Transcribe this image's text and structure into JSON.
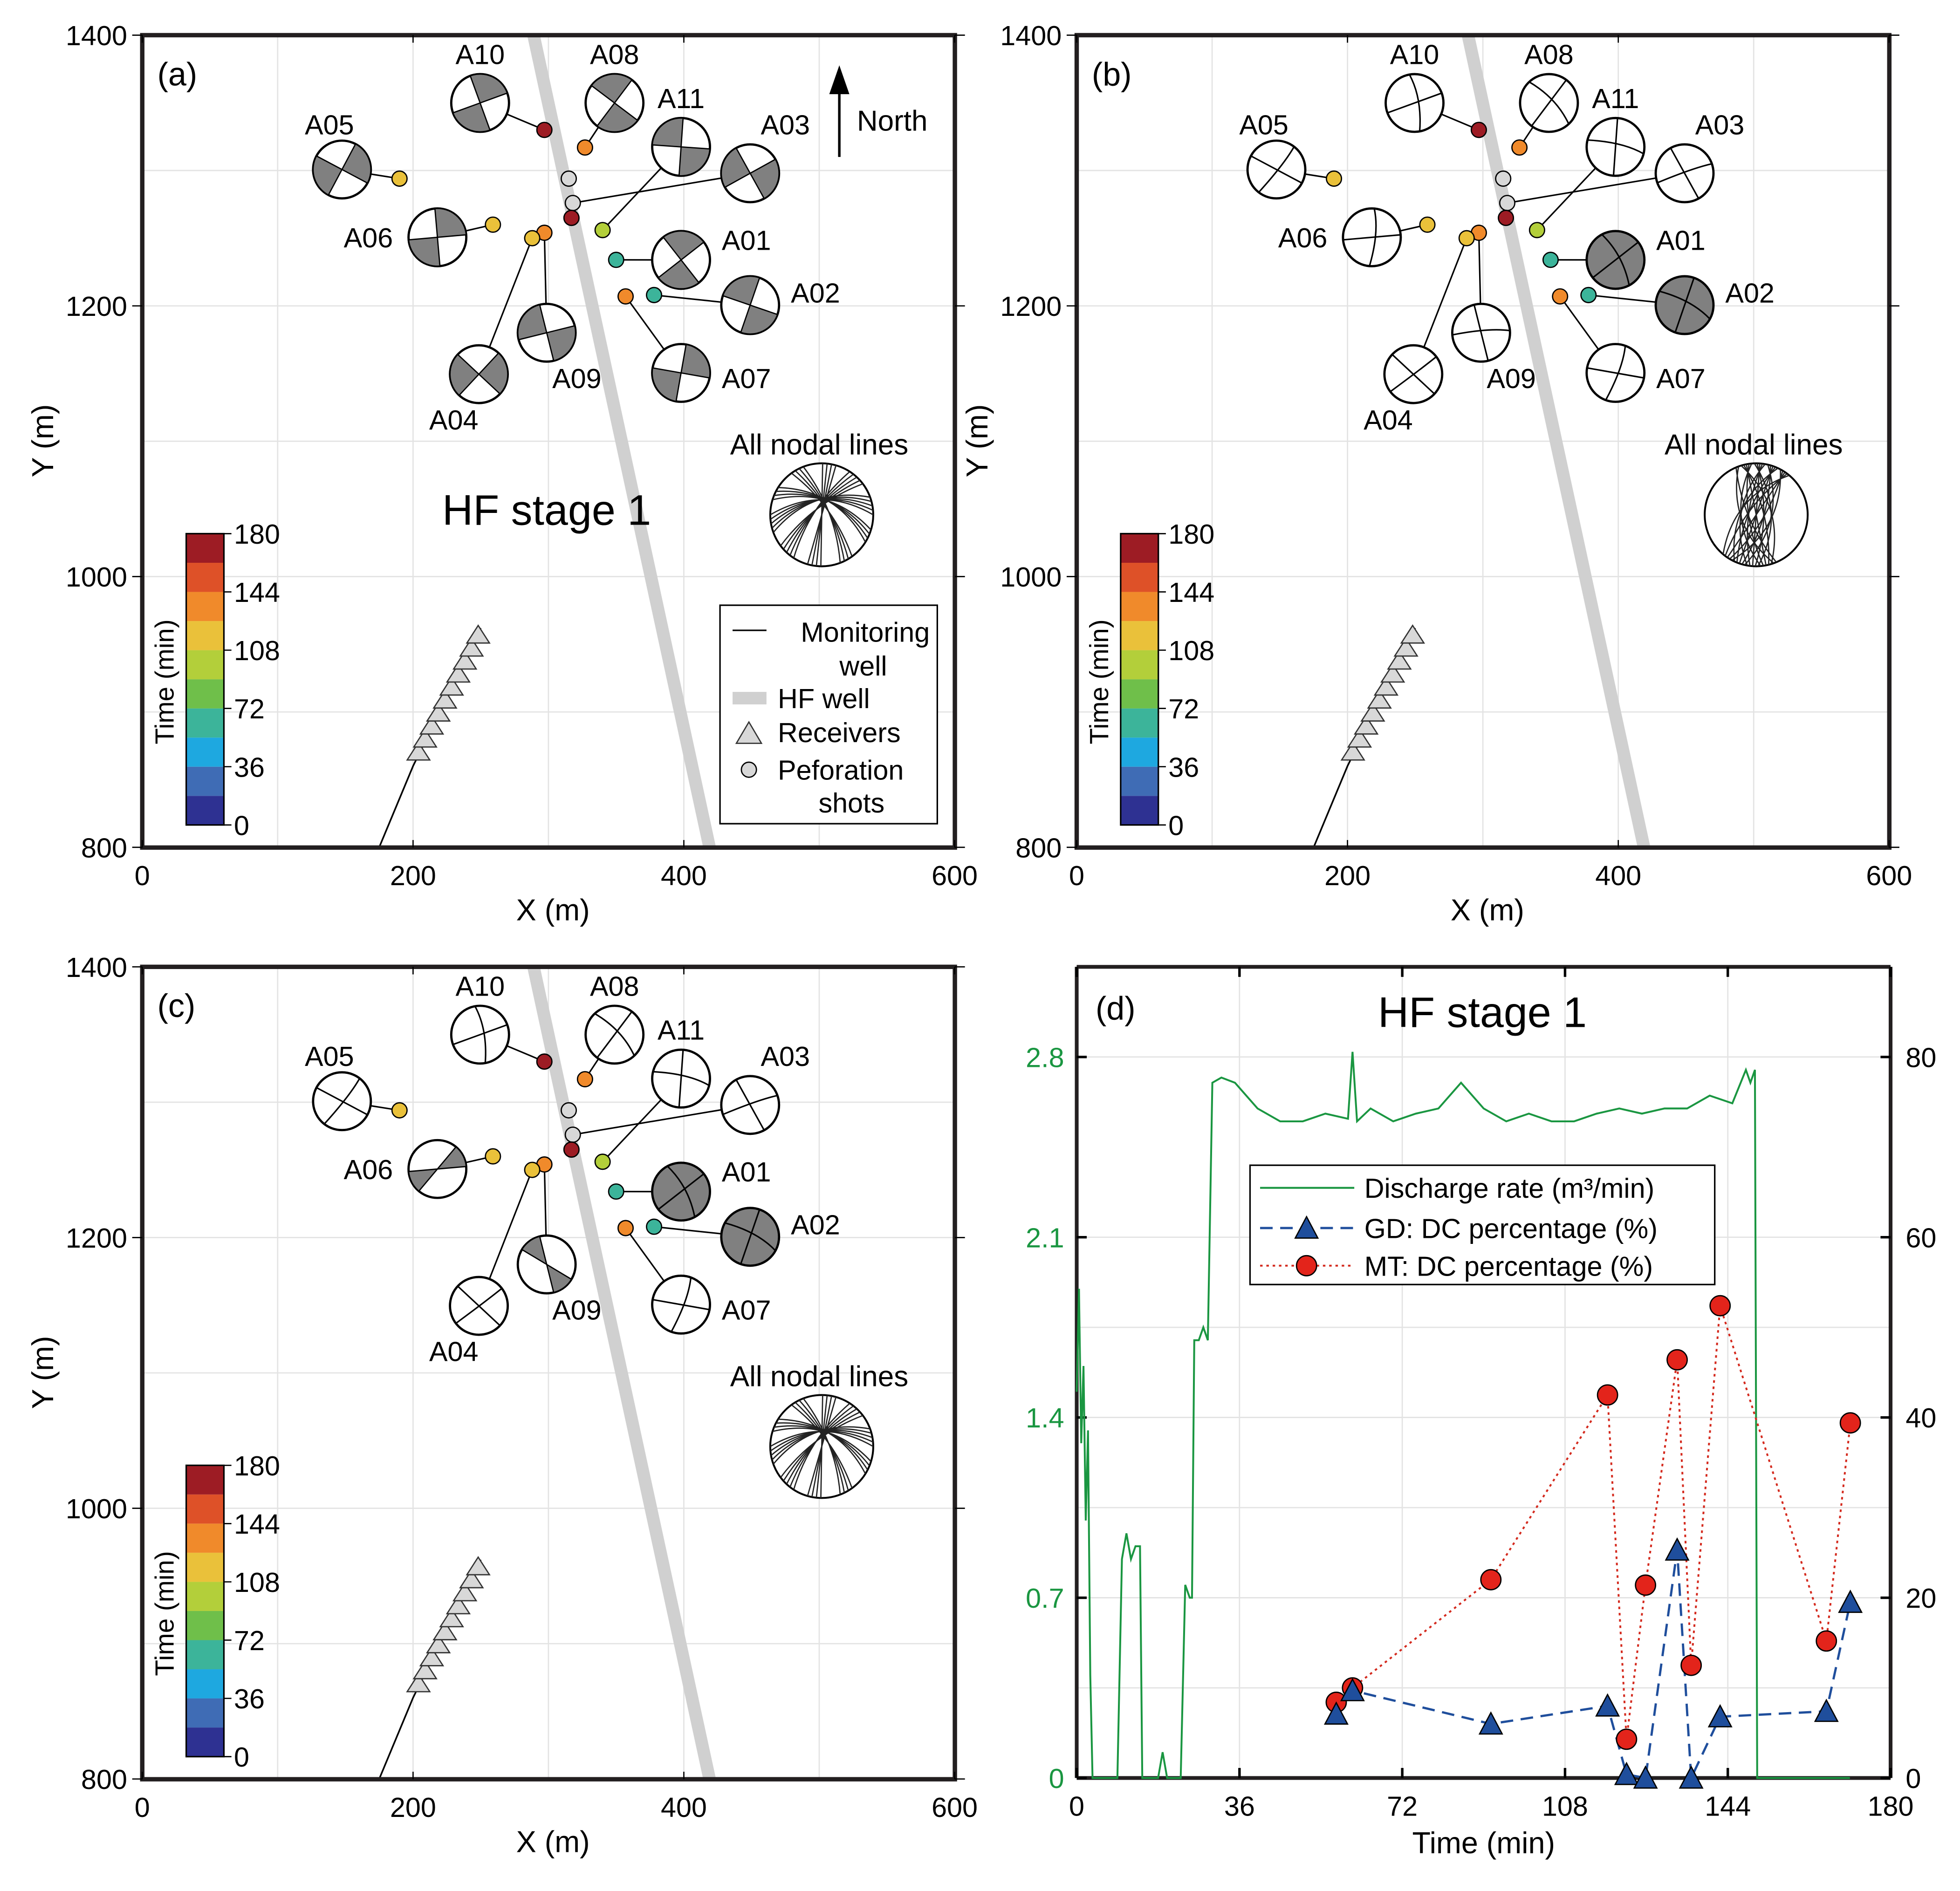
{
  "panels": [
    {
      "label": "(a)",
      "method": "dc",
      "title": "HF stage 1",
      "nodal_label": "All nodal lines",
      "north": "North",
      "legend": {
        "monitoring": "Monitoring",
        "monitoring2": "well",
        "hf": "HF well",
        "receivers": "Receivers",
        "perf": "Peforation",
        "perf2": "shots"
      }
    },
    {
      "label": "(b)",
      "method": "gd",
      "nodal_label": "All nodal lines"
    },
    {
      "label": "(c)",
      "method": "mt",
      "nodal_label": "All nodal lines"
    }
  ],
  "map_axes": {
    "xlabel": "X (m)",
    "ylabel": "Y (m)",
    "xticks": [
      "0",
      "200",
      "400",
      "600"
    ],
    "yticks": [
      "800",
      "1000",
      "1200",
      "1400"
    ],
    "xlim": [
      0,
      600
    ],
    "ylim": [
      800,
      1400
    ]
  },
  "colorbar": {
    "label": "Time (min)",
    "ticks": [
      "0",
      "36",
      "72",
      "108",
      "144",
      "180"
    ],
    "colors": [
      "#2e3192",
      "#3f6cb5",
      "#1ea8e0",
      "#3cb49a",
      "#6fbf4a",
      "#b3cf3a",
      "#eac13a",
      "#f08a2b",
      "#de5128",
      "#9d1c24"
    ]
  },
  "events": [
    {
      "id": "A10",
      "x": 297,
      "y": 1330,
      "time": 172,
      "ball": [
        382,
        82
      ],
      "fill": {
        "a": "dc",
        "b": "white",
        "c": "white"
      }
    },
    {
      "id": "A08",
      "x": 327,
      "y": 1317,
      "time": 130,
      "ball": [
        489,
        82
      ],
      "fill": {
        "a": "dc",
        "b": "white",
        "c": "white"
      }
    },
    {
      "id": "A11",
      "x": 340,
      "y": 1256,
      "time": 96,
      "ball": [
        542,
        117
      ],
      "fill": {
        "a": "dc",
        "b": "white",
        "c": "white"
      }
    },
    {
      "id": "A03",
      "x": 318,
      "y": 1276,
      "time": 0,
      "ball": [
        597,
        138
      ],
      "fill": {
        "a": "dc",
        "b": "white",
        "c": "white"
      }
    },
    {
      "id": "A05",
      "x": 190,
      "y": 1294,
      "time": 110,
      "ball": [
        272,
        135
      ],
      "fill": {
        "a": "dc",
        "b": "white",
        "c": "white"
      }
    },
    {
      "id": "A06",
      "x": 259,
      "y": 1260,
      "time": 112,
      "ball": [
        348,
        189
      ],
      "fill": {
        "a": "dc",
        "b": "white",
        "c": "partial"
      }
    },
    {
      "id": "A01",
      "x": 350,
      "y": 1234,
      "time": 70,
      "ball": [
        542,
        207
      ],
      "fill": {
        "a": "dc",
        "b": "gray",
        "c": "gray"
      }
    },
    {
      "id": "A02",
      "x": 378,
      "y": 1208,
      "time": 65,
      "ball": [
        597,
        243
      ],
      "fill": {
        "a": "dc",
        "b": "gray",
        "c": "gray"
      }
    },
    {
      "id": "A09",
      "x": 297,
      "y": 1254,
      "time": 130,
      "ball": [
        435,
        265
      ],
      "fill": {
        "a": "dc",
        "b": "white",
        "c": "partial"
      }
    },
    {
      "id": "A04",
      "x": 288,
      "y": 1250,
      "time": 112,
      "ball": [
        381,
        298
      ],
      "fill": {
        "a": "dc",
        "b": "white",
        "c": "white"
      }
    },
    {
      "id": "A07",
      "x": 357,
      "y": 1207,
      "time": 135,
      "ball": [
        542,
        297
      ],
      "fill": {
        "a": "dc",
        "b": "white",
        "c": "white"
      }
    }
  ],
  "extra_points": [
    {
      "x": 317,
      "y": 1265,
      "time": 172
    },
    {
      "x": 315,
      "y": 1294,
      "perf": true
    }
  ],
  "chart_data": {
    "type": "line",
    "label": "(d)",
    "title": "HF stage 1",
    "xlabel": "Time (min)",
    "xlim": [
      0,
      180
    ],
    "xticks": [
      0,
      36,
      72,
      108,
      144,
      180
    ],
    "ylim_left": [
      0,
      3.15
    ],
    "yticks_left": [
      "0",
      "0.7",
      "1.4",
      "2.1",
      "2.8"
    ],
    "ylim_right": [
      0,
      90
    ],
    "yticks_right": [
      "0",
      "20",
      "40",
      "60",
      "80"
    ],
    "legend_position": "upper-center",
    "series": [
      {
        "name": "Discharge rate (m³/min)",
        "axis": "left",
        "color": "#1a9641",
        "x": [
          0,
          0.5,
          1,
          1.5,
          2,
          2.5,
          3,
          3.5,
          4,
          5,
          9,
          10,
          11,
          12,
          13,
          14,
          14.5,
          18,
          19,
          20,
          21,
          22,
          23,
          24,
          25,
          25.5,
          26,
          27,
          28,
          29,
          30,
          32,
          35,
          40,
          45,
          50,
          55,
          60,
          61,
          62,
          65,
          70,
          75,
          80,
          85,
          90,
          95,
          100,
          105,
          110,
          115,
          120,
          125,
          130,
          135,
          140,
          145,
          148,
          149,
          150,
          150.5,
          171
        ],
        "y": [
          1.5,
          1.9,
          1.3,
          1.6,
          1.0,
          1.35,
          0.4,
          0,
          0,
          0,
          0,
          0.85,
          0.95,
          0.85,
          0.9,
          0.9,
          0,
          0,
          0.1,
          0,
          0,
          0,
          0,
          0.75,
          0.7,
          0.7,
          1.7,
          1.7,
          1.75,
          1.7,
          2.7,
          2.72,
          2.7,
          2.6,
          2.55,
          2.55,
          2.58,
          2.56,
          2.82,
          2.55,
          2.6,
          2.55,
          2.58,
          2.6,
          2.7,
          2.6,
          2.55,
          2.58,
          2.55,
          2.55,
          2.58,
          2.6,
          2.58,
          2.6,
          2.6,
          2.65,
          2.62,
          2.75,
          2.7,
          2.75,
          0,
          0
        ]
      },
      {
        "name": "GD: DC percentage (%)",
        "axis": "right",
        "color": "#1f4e9c",
        "marker": "triangle",
        "x": [
          57.4,
          61,
          91.6,
          117.4,
          121.6,
          125.8,
          132.8,
          135.9,
          142.3,
          165.8,
          171.1
        ],
        "y": [
          7.1,
          9.7,
          6.0,
          8.0,
          0.4,
          0,
          25.3,
          0,
          6.8,
          7.4,
          19.5
        ]
      },
      {
        "name": "MT: DC percentage (%)",
        "axis": "right",
        "color": "#d42a1e",
        "marker": "circle",
        "x": [
          57.4,
          61,
          91.6,
          117.4,
          121.6,
          125.8,
          132.8,
          135.9,
          142.3,
          165.8,
          171.1
        ],
        "y": [
          8.4,
          10.0,
          22.0,
          42.5,
          4.3,
          21.4,
          46.4,
          12.5,
          52.4,
          15.2,
          39.4
        ]
      }
    ]
  }
}
